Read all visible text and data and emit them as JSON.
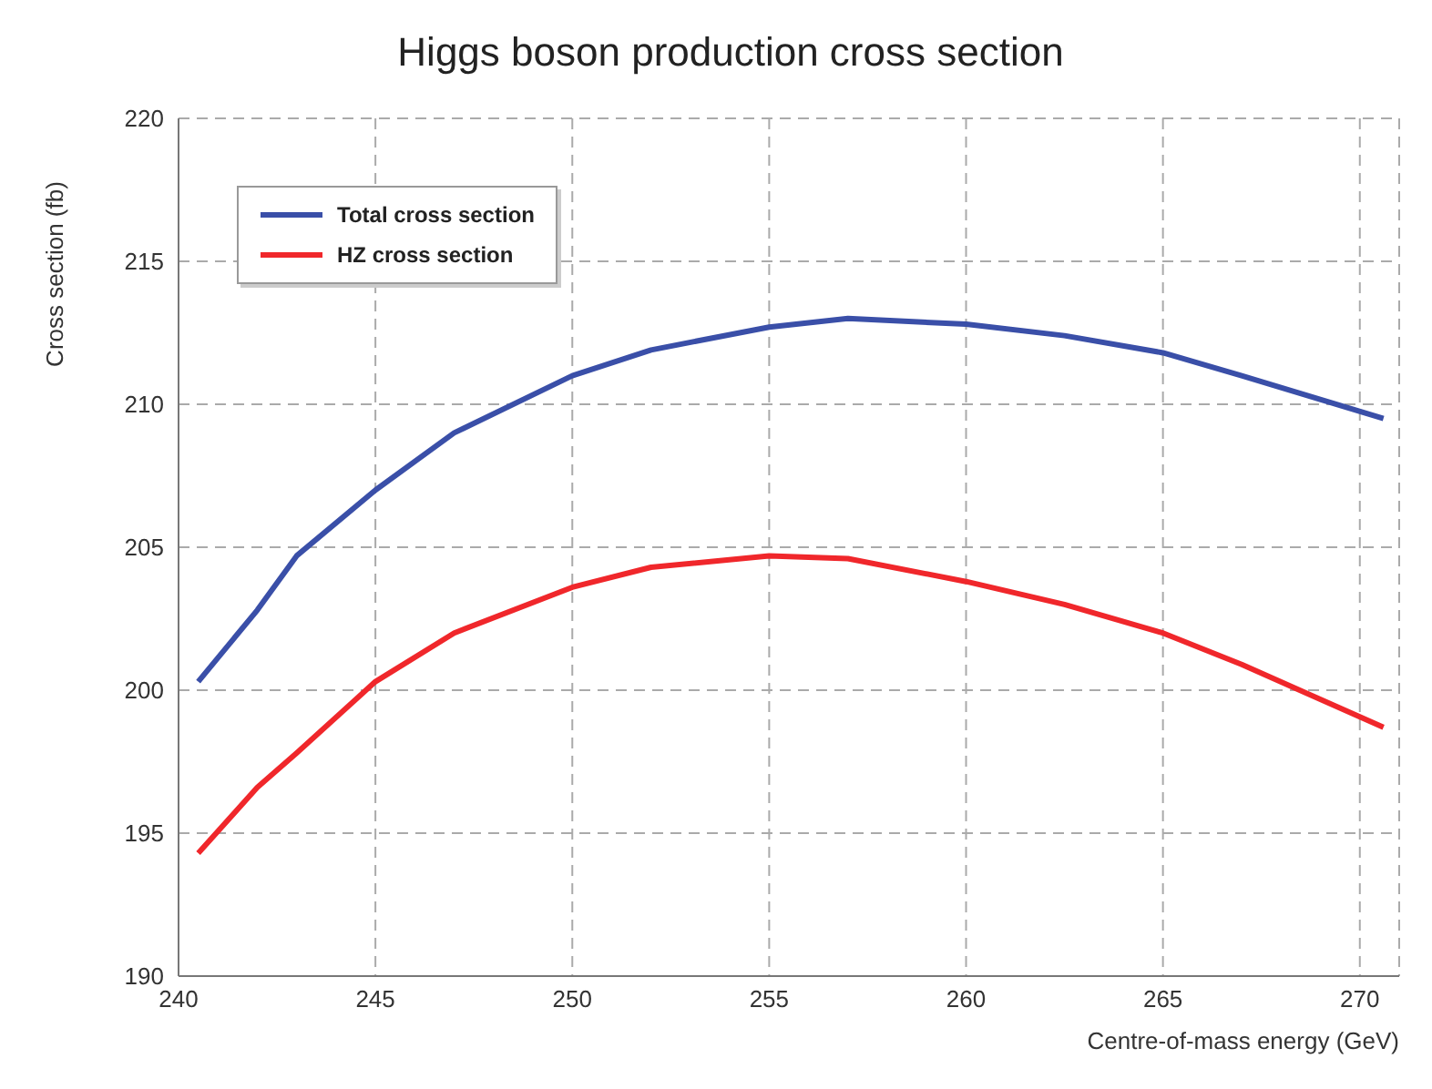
{
  "chart_data": {
    "type": "line",
    "title": "Higgs boson production cross section",
    "xlabel": "Centre-of-mass energy (GeV)",
    "ylabel": "Cross section (fb)",
    "x": [
      240.5,
      242,
      243,
      245,
      247,
      250,
      252,
      255,
      257,
      260,
      262.5,
      265,
      267,
      270.6
    ],
    "series": [
      {
        "name": "Total cross section",
        "color": "#3a4fa8",
        "values": [
          200.3,
          202.8,
          204.7,
          207.0,
          209.0,
          211.0,
          211.9,
          212.7,
          213.0,
          212.8,
          212.4,
          211.8,
          211.0,
          209.5
        ]
      },
      {
        "name": "HZ cross section",
        "color": "#f0272b",
        "values": [
          194.3,
          196.6,
          197.8,
          200.3,
          202.0,
          203.6,
          204.3,
          204.7,
          204.6,
          203.8,
          203.0,
          202.0,
          200.9,
          198.7
        ]
      }
    ],
    "xlim": [
      240,
      271
    ],
    "xticks": [
      240,
      245,
      250,
      255,
      260,
      265,
      270
    ],
    "ylim": [
      190,
      220
    ],
    "yticks": [
      190,
      195,
      200,
      205,
      210,
      215,
      220
    ],
    "grid": true,
    "legend": "top left",
    "marker": "none",
    "line_style": "solid"
  }
}
